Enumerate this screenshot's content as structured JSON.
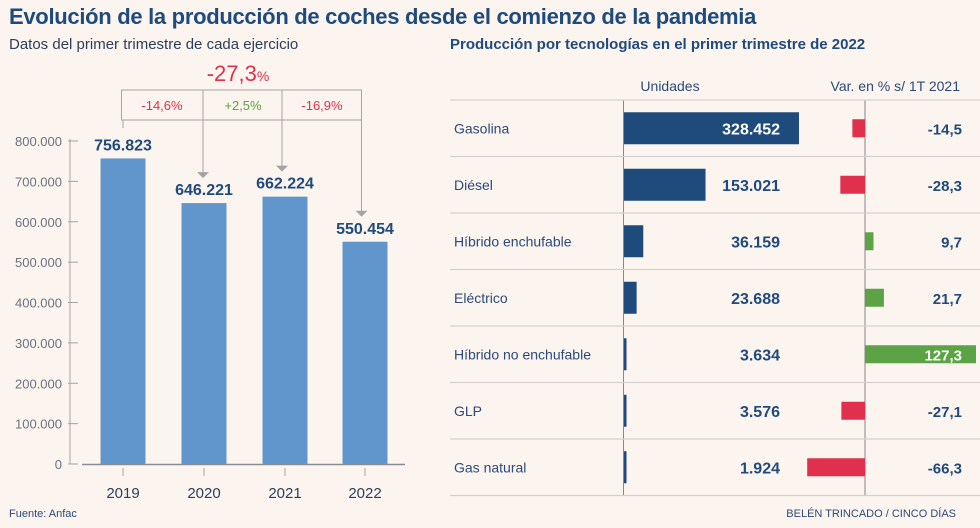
{
  "header": {
    "title": "Evolución de la producción de coches desde el comienzo de la pandemia",
    "left_subtitle": "Datos del primer trimestre de cada ejercicio",
    "right_subtitle": "Producción por tecnologías en el primer trimestre de 2022"
  },
  "footer": {
    "source": "Fuente: Anfac",
    "credit": "BELÉN TRINCADO / CINCO DÍAS"
  },
  "colors": {
    "bar_blue": "#6196cd",
    "dark_blue": "#1f4a7c",
    "negative_red": "#e0304d",
    "positive_green": "#5ba345",
    "axis_gray": "#a7a2a3"
  },
  "chart_data": [
    {
      "type": "bar",
      "title": "Datos del primer trimestre de cada ejercicio",
      "categories": [
        "2019",
        "2020",
        "2021",
        "2022"
      ],
      "values": [
        756823,
        646221,
        662224,
        550454
      ],
      "value_labels": [
        "756.823",
        "646.221",
        "662.224",
        "550.454"
      ],
      "ylim": [
        0,
        800000
      ],
      "yticks": [
        0,
        100000,
        200000,
        300000,
        400000,
        500000,
        600000,
        700000,
        800000
      ],
      "ytick_labels": [
        "0",
        "100.000",
        "200.000",
        "300.000",
        "400.000",
        "500.000",
        "600.000",
        "700.000",
        "800.000"
      ],
      "xlabel": "",
      "ylabel": "",
      "grid": false,
      "annotations": {
        "total_change": {
          "value": "-27,3",
          "suffix": "%"
        },
        "changes": [
          {
            "label": "-14,6%",
            "from": "2019",
            "to": "2020",
            "sign": "negative"
          },
          {
            "label": "+2,5%",
            "from": "2020",
            "to": "2021",
            "sign": "positive"
          },
          {
            "label": "-16,9%",
            "from": "2021",
            "to": "2022",
            "sign": "negative"
          }
        ]
      }
    },
    {
      "type": "bar",
      "orientation": "horizontal",
      "title": "Producción por tecnologías en el primer trimestre de 2022",
      "columns": [
        "Unidades",
        "Var. en % s/ 1T 2021"
      ],
      "categories": [
        "Gasolina",
        "Diésel",
        "Híbrido enchufable",
        "Eléctrico",
        "Híbrido no enchufable",
        "GLP",
        "Gas natural"
      ],
      "series": [
        {
          "name": "Unidades",
          "values": [
            328452,
            153021,
            36159,
            23688,
            3634,
            3576,
            1924
          ],
          "labels": [
            "328.452",
            "153.021",
            "36.159",
            "23.688",
            "3.634",
            "3.576",
            "1.924"
          ]
        },
        {
          "name": "Var. en % s/ 1T 2021",
          "values": [
            -14.5,
            -28.3,
            9.7,
            21.7,
            127.3,
            -27.1,
            -66.3
          ],
          "labels": [
            "-14,5",
            "-28,3",
            "9,7",
            "21,7",
            "127,3",
            "-27,1",
            "-66,3"
          ]
        }
      ]
    }
  ]
}
